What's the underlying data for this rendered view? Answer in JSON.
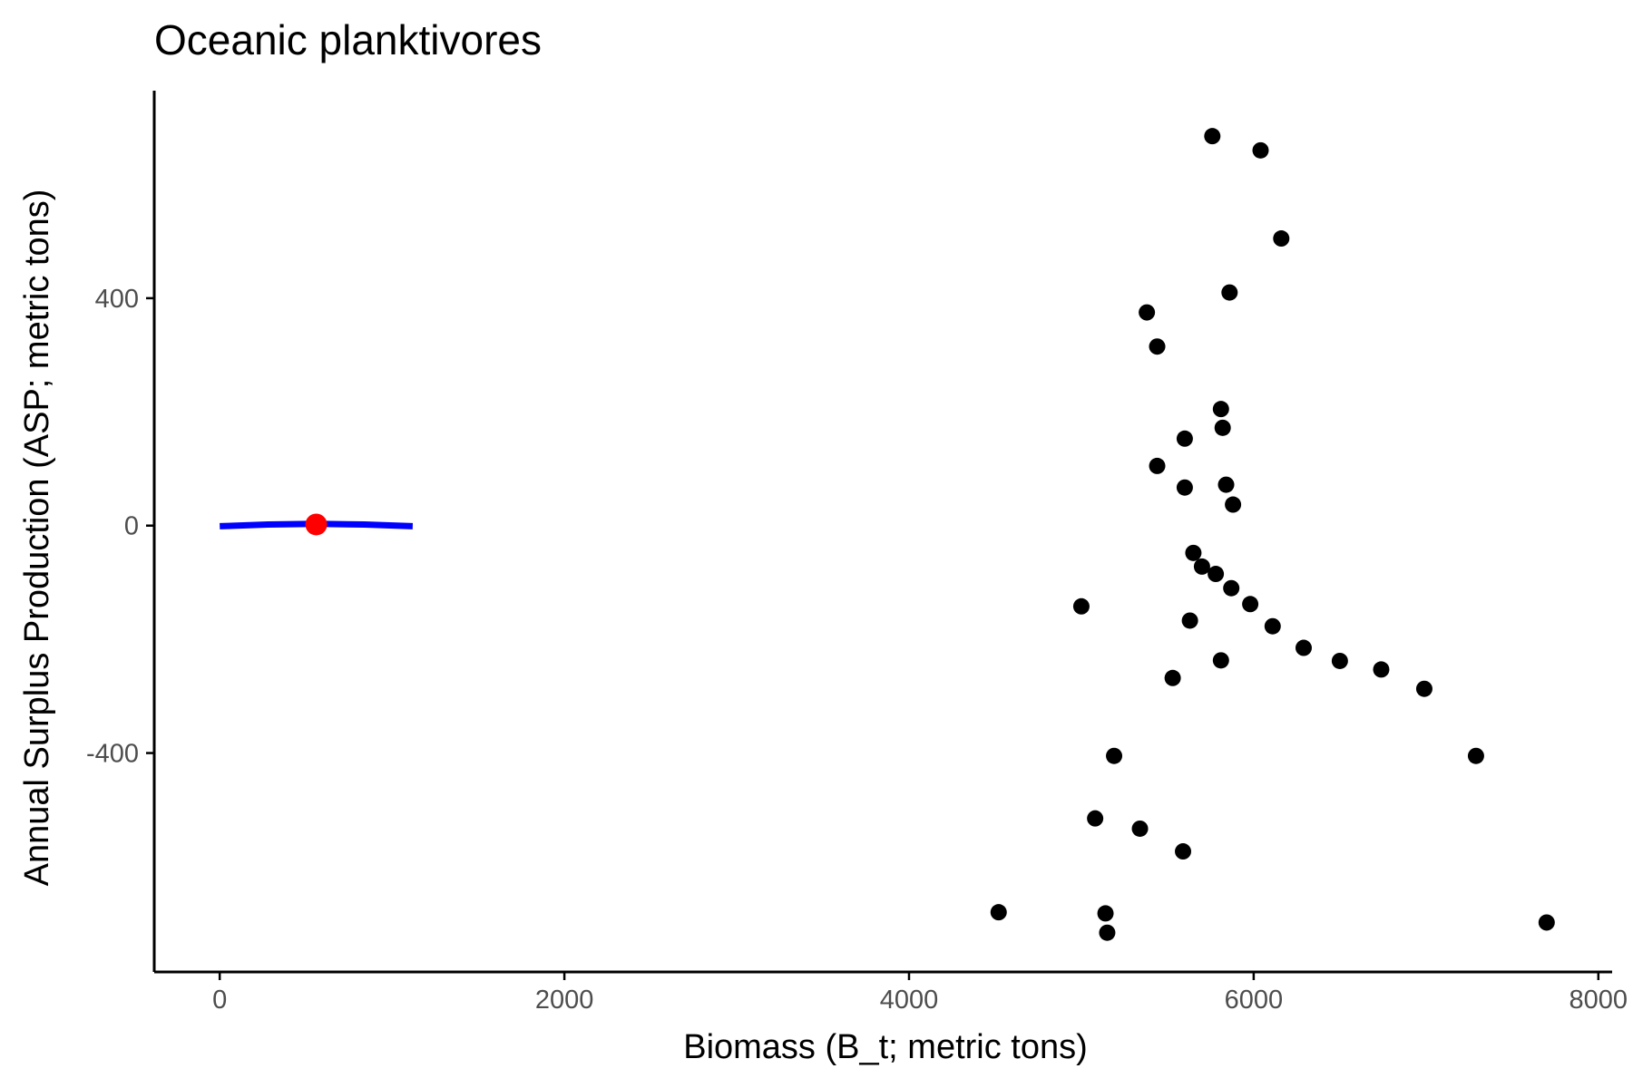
{
  "chart_data": {
    "type": "scatter",
    "title": "Oceanic planktivores",
    "xlabel": "Biomass (B_t; metric tons)",
    "ylabel": "Annual Surplus Production (ASP; metric tons)",
    "xlim": [
      -380,
      8080
    ],
    "ylim": [
      -785,
      765
    ],
    "xticks": [
      0,
      2000,
      4000,
      6000,
      8000
    ],
    "yticks": [
      -400,
      0,
      400
    ],
    "grid": false,
    "legend": "none",
    "point_color": "#000000",
    "curve_color": "#0000ff",
    "highlight_color": "#ff0000",
    "points": [
      {
        "x": 5760,
        "y": 685
      },
      {
        "x": 6040,
        "y": 660
      },
      {
        "x": 6160,
        "y": 505
      },
      {
        "x": 5860,
        "y": 410
      },
      {
        "x": 5380,
        "y": 375
      },
      {
        "x": 5440,
        "y": 315
      },
      {
        "x": 5810,
        "y": 205
      },
      {
        "x": 5820,
        "y": 172
      },
      {
        "x": 5600,
        "y": 153
      },
      {
        "x": 5440,
        "y": 105
      },
      {
        "x": 5840,
        "y": 72
      },
      {
        "x": 5600,
        "y": 67
      },
      {
        "x": 5880,
        "y": 37
      },
      {
        "x": 5650,
        "y": -48
      },
      {
        "x": 5700,
        "y": -72
      },
      {
        "x": 5780,
        "y": -85
      },
      {
        "x": 5870,
        "y": -110
      },
      {
        "x": 5980,
        "y": -138
      },
      {
        "x": 5000,
        "y": -142
      },
      {
        "x": 5630,
        "y": -167
      },
      {
        "x": 6110,
        "y": -177
      },
      {
        "x": 6290,
        "y": -215
      },
      {
        "x": 6500,
        "y": -238
      },
      {
        "x": 6740,
        "y": -253
      },
      {
        "x": 5810,
        "y": -237
      },
      {
        "x": 5530,
        "y": -268
      },
      {
        "x": 6990,
        "y": -287
      },
      {
        "x": 7290,
        "y": -405
      },
      {
        "x": 5190,
        "y": -405
      },
      {
        "x": 5080,
        "y": -515
      },
      {
        "x": 5340,
        "y": -533
      },
      {
        "x": 5590,
        "y": -573
      },
      {
        "x": 4520,
        "y": -680
      },
      {
        "x": 5140,
        "y": -682
      },
      {
        "x": 5150,
        "y": -716
      },
      {
        "x": 7700,
        "y": -698
      }
    ],
    "fit_curve": [
      {
        "x": 0,
        "y": -1
      },
      {
        "x": 280,
        "y": 2
      },
      {
        "x": 560,
        "y": 3
      },
      {
        "x": 840,
        "y": 2
      },
      {
        "x": 1120,
        "y": -1
      }
    ],
    "highlight_point": {
      "x": 560,
      "y": 2
    }
  }
}
